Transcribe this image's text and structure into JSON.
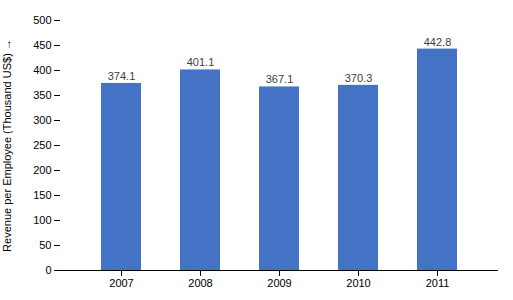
{
  "chart_data": {
    "type": "bar",
    "categories": [
      "2007",
      "2008",
      "2009",
      "2010",
      "2011"
    ],
    "values": [
      374.1,
      401.1,
      367.1,
      370.3,
      442.8
    ],
    "color": "#4472C4",
    "ylabel": "Revenue per Employee (Thousand US$)",
    "ylim": [
      0,
      500
    ],
    "yticks": [
      0,
      50,
      100,
      150,
      200,
      250,
      300,
      350,
      400,
      450,
      500
    ],
    "data_labels": true,
    "grid": false
  }
}
